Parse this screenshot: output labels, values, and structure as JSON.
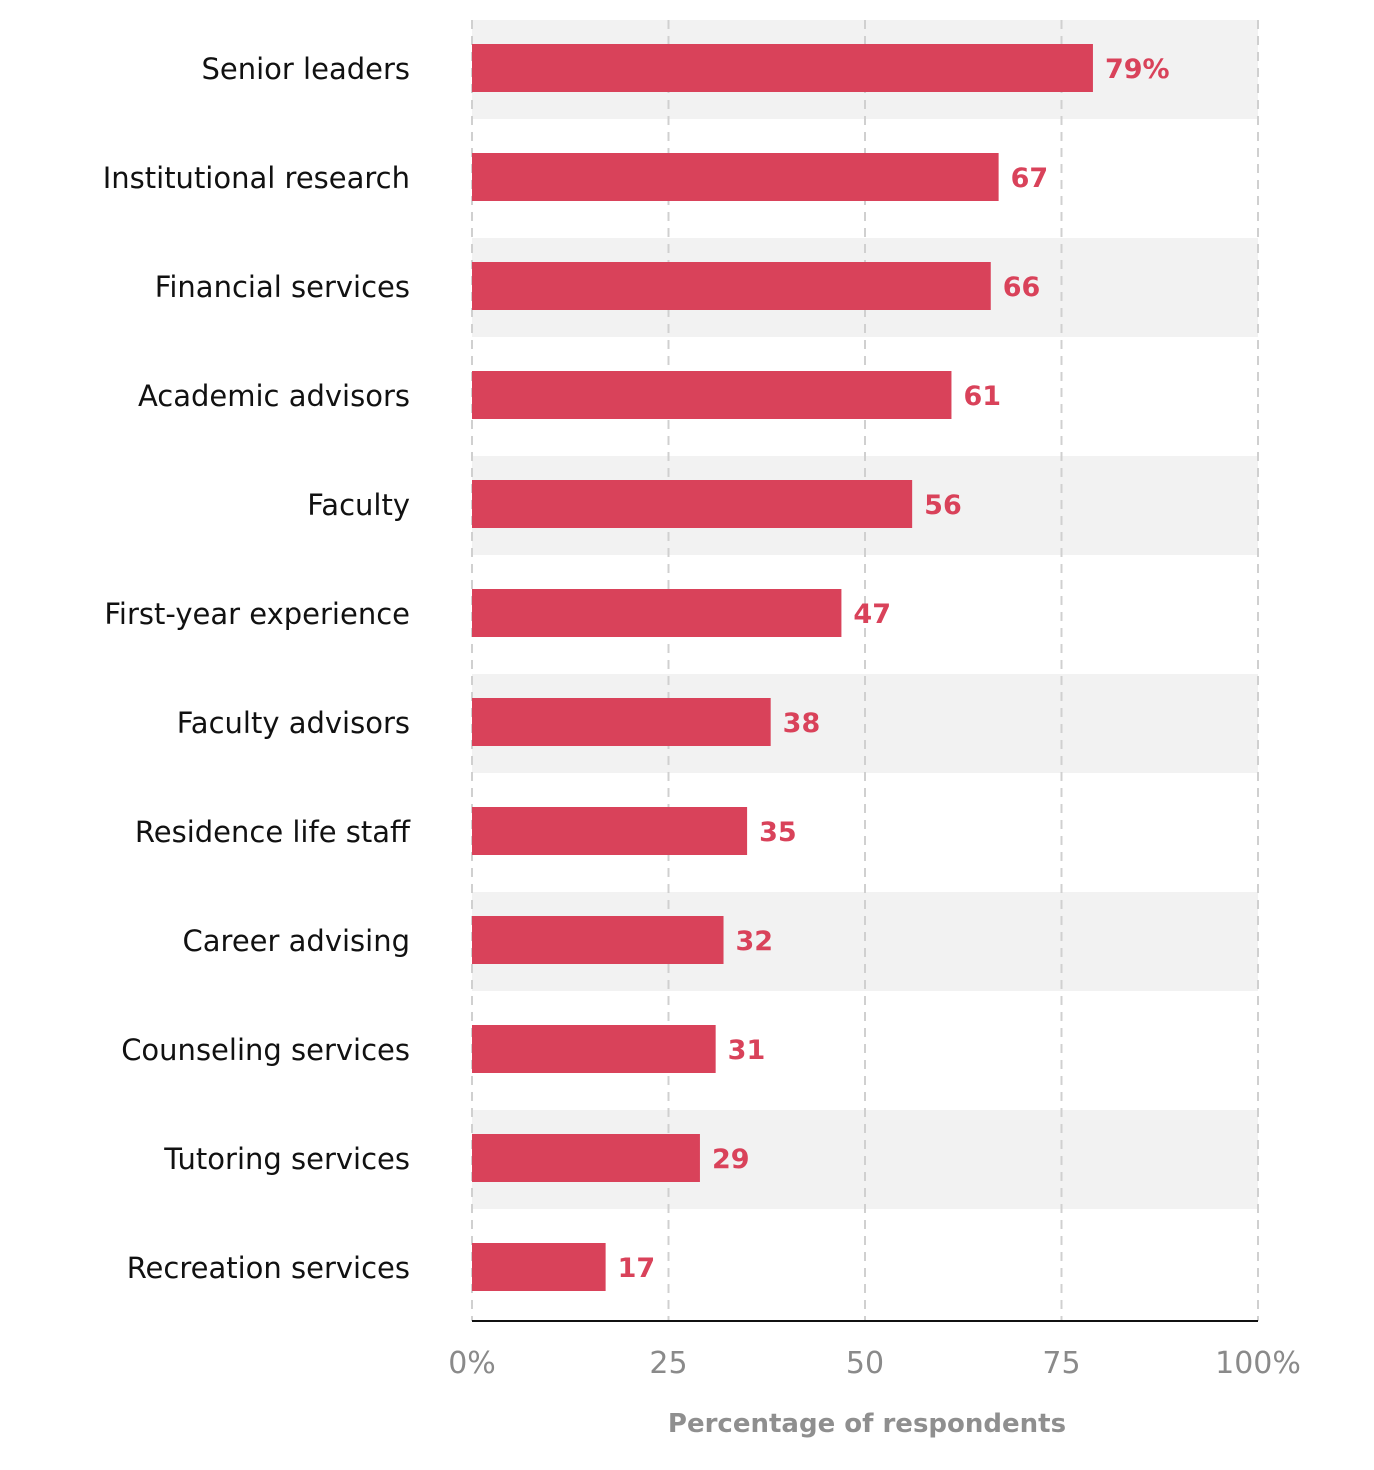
{
  "colors": {
    "bar": "#d9425a",
    "value_label": "#d9425a",
    "band": "#f2f2f2",
    "grid": "#d0d0d0",
    "axis": "#111111"
  },
  "chart_data": {
    "type": "bar",
    "orientation": "horizontal",
    "categories": [
      "Senior leaders",
      "Institutional research",
      "Financial services",
      "Academic advisors",
      "Faculty",
      "First-year experience",
      "Faculty advisors",
      "Residence life staff",
      "Career advising",
      "Counseling services",
      "Tutoring services",
      "Recreation services"
    ],
    "values": [
      79,
      67,
      66,
      61,
      56,
      47,
      38,
      35,
      32,
      31,
      29,
      17
    ],
    "value_labels": [
      "79%",
      "67",
      "66",
      "61",
      "56",
      "47",
      "38",
      "35",
      "32",
      "31",
      "29",
      "17"
    ],
    "xlim": [
      0,
      100
    ],
    "xticks": [
      0,
      25,
      50,
      75,
      100
    ],
    "xtick_labels": [
      "0%",
      "25",
      "50",
      "75",
      "100%"
    ],
    "xlabel": "Percentage of respondents",
    "ylabel": "",
    "title": "",
    "grid": "vertical dashed",
    "legend": "none"
  }
}
